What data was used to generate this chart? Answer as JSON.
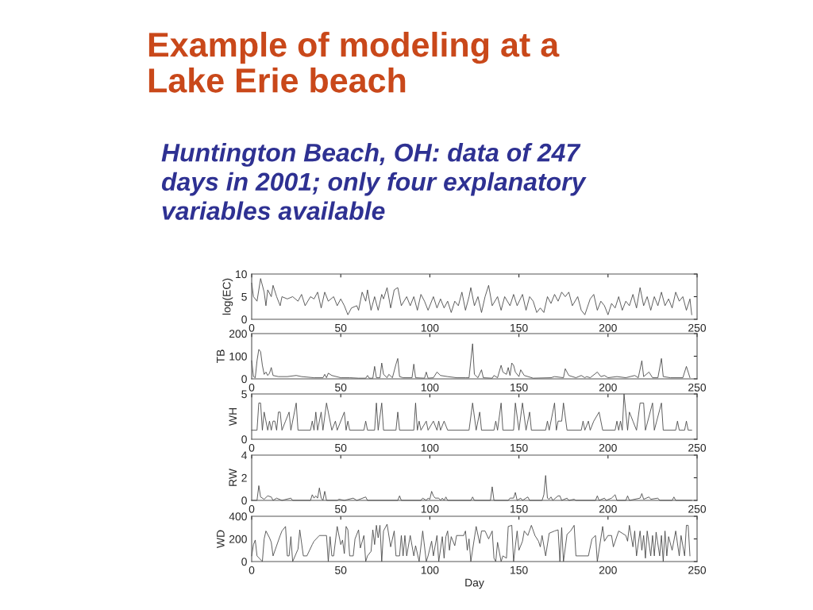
{
  "chart_data": [
    {
      "type": "line",
      "title": "Example of modeling at a\nLake Erie beach",
      "subtitle": "Huntington Beach, OH: data of 247\ndays in 2001; only four explanatory\nvariables available",
      "ylabel": "log(EC)",
      "color": "#404040",
      "grid": false,
      "xlim": [
        0,
        250
      ],
      "xticks": [
        0,
        50,
        100,
        150,
        200,
        250
      ],
      "ylim": [
        0,
        10
      ],
      "yticks": [
        0,
        5,
        10
      ],
      "x": [
        0,
        1,
        3,
        5,
        7,
        8,
        9,
        11,
        12,
        14,
        16,
        17,
        20,
        23,
        26,
        28,
        30,
        33,
        35,
        37,
        39,
        41,
        43,
        46,
        48,
        50,
        52,
        54,
        56,
        59,
        60,
        62,
        64,
        65,
        67,
        69,
        71,
        73,
        74,
        76,
        78,
        80,
        82,
        84,
        87,
        89,
        91,
        93,
        95,
        97,
        99,
        102,
        104,
        106,
        108,
        110,
        112,
        114,
        116,
        118,
        120,
        122,
        123,
        125,
        127,
        129,
        131,
        133,
        135,
        138,
        140,
        142,
        145,
        147,
        149,
        152,
        154,
        156,
        158,
        160,
        162,
        164,
        166,
        168,
        170,
        172,
        174,
        176,
        178,
        180,
        183,
        185,
        187,
        190,
        192,
        194,
        196,
        198,
        200,
        202,
        204,
        206,
        208,
        210,
        212,
        214,
        216,
        218,
        220,
        222,
        224,
        226,
        228,
        230,
        232,
        234,
        236,
        238,
        240,
        242,
        244,
        246,
        247
      ],
      "values": [
        8,
        5,
        4,
        9,
        6,
        3,
        6.5,
        5,
        7.5,
        5,
        3,
        5,
        4.5,
        5,
        4,
        5.5,
        3,
        5,
        4.5,
        6,
        2.5,
        6,
        4,
        5,
        3,
        4.5,
        3,
        1,
        2.5,
        3,
        2,
        6,
        4,
        6.5,
        2,
        5,
        2,
        5.5,
        4.5,
        7,
        2.5,
        6.5,
        7,
        3,
        5,
        3,
        5,
        2,
        5.5,
        4,
        2,
        5,
        2.5,
        4.5,
        2.5,
        4,
        1.5,
        4,
        3,
        6,
        2,
        5,
        7,
        3,
        5,
        1.5,
        5,
        7.5,
        3,
        5,
        2,
        5,
        3,
        5.5,
        3,
        5.5,
        2,
        5,
        4,
        1.5,
        2.5,
        1.5,
        5,
        3.5,
        5.5,
        4,
        6,
        5,
        6,
        3,
        5,
        2,
        1,
        4.5,
        5.5,
        2,
        4,
        3,
        1,
        3.5,
        2.5,
        5,
        2,
        4,
        3,
        5.5,
        2.5,
        7,
        3,
        5,
        2,
        5,
        3,
        6,
        3,
        4.5,
        2.5,
        6,
        4,
        5,
        2,
        4.5,
        1
      ]
    },
    {
      "type": "line",
      "ylabel": "TB",
      "color": "#404040",
      "grid": false,
      "xlim": [
        0,
        250
      ],
      "xticks": [
        0,
        50,
        100,
        150,
        200,
        250
      ],
      "ylim": [
        0,
        200
      ],
      "yticks": [
        0,
        100,
        200
      ],
      "x": [
        0,
        1,
        2,
        3,
        4,
        5,
        6,
        7,
        8,
        9,
        10,
        11,
        12,
        15,
        20,
        25,
        28,
        35,
        40,
        41,
        42,
        43,
        45,
        50,
        55,
        60,
        64,
        65,
        66,
        68,
        69,
        70,
        72,
        73,
        74,
        76,
        77,
        79,
        81,
        82,
        83,
        85,
        90,
        91,
        92,
        97,
        98,
        99,
        102,
        104,
        106,
        110,
        115,
        120,
        122,
        124,
        125,
        127,
        129,
        130,
        135,
        136,
        138,
        140,
        141,
        143,
        144,
        145,
        146,
        147,
        148,
        150,
        151,
        153,
        158,
        168,
        170,
        175,
        176,
        178,
        182,
        185,
        187,
        188,
        190,
        194,
        196,
        198,
        200,
        205,
        210,
        215,
        217,
        219,
        220,
        223,
        225,
        228,
        230,
        231,
        235,
        242,
        244,
        246
      ],
      "values": [
        80,
        10,
        5,
        80,
        130,
        120,
        60,
        20,
        30,
        15,
        25,
        50,
        15,
        10,
        10,
        15,
        10,
        5,
        5,
        20,
        5,
        25,
        15,
        5,
        5,
        3,
        3,
        15,
        3,
        3,
        55,
        5,
        5,
        70,
        20,
        5,
        20,
        5,
        65,
        90,
        10,
        5,
        5,
        65,
        5,
        3,
        30,
        3,
        5,
        30,
        15,
        10,
        5,
        5,
        5,
        155,
        20,
        5,
        40,
        5,
        3,
        15,
        5,
        60,
        30,
        20,
        50,
        15,
        70,
        60,
        30,
        10,
        40,
        15,
        3,
        5,
        10,
        5,
        45,
        15,
        5,
        15,
        5,
        10,
        5,
        30,
        10,
        15,
        5,
        10,
        5,
        15,
        5,
        80,
        10,
        30,
        5,
        5,
        90,
        10,
        5,
        5,
        55,
        5
      ]
    },
    {
      "type": "line",
      "ylabel": "WH",
      "color": "#404040",
      "grid": false,
      "xlim": [
        0,
        250
      ],
      "xticks": [
        0,
        50,
        100,
        150,
        200,
        250
      ],
      "ylim": [
        0,
        5
      ],
      "yticks": [
        0,
        5
      ],
      "x": [
        0,
        3,
        4,
        5,
        6,
        7,
        9,
        10,
        11,
        12,
        13,
        14,
        15,
        16,
        17,
        19,
        21,
        22,
        25,
        26,
        33,
        34,
        35,
        36,
        37,
        39,
        40,
        42,
        45,
        47,
        48,
        52,
        53,
        54,
        55,
        63,
        64,
        65,
        69,
        70,
        71,
        73,
        74,
        81,
        82,
        83,
        91,
        92,
        93,
        94,
        95,
        98,
        99,
        102,
        104,
        105,
        106,
        108,
        110,
        122,
        124,
        126,
        128,
        129,
        136,
        137,
        138,
        140,
        141,
        147,
        148,
        150,
        152,
        154,
        156,
        157,
        165,
        166,
        167,
        170,
        171,
        172,
        174,
        175,
        177,
        185,
        186,
        187,
        189,
        190,
        192,
        195,
        197,
        204,
        205,
        206,
        207,
        208,
        209,
        211,
        212,
        214,
        216,
        218,
        220,
        221,
        225,
        226,
        230,
        231,
        238,
        239,
        240,
        243,
        244,
        245,
        247
      ],
      "values": [
        1,
        1,
        4,
        4,
        1,
        3,
        1,
        2,
        1,
        2,
        2,
        1,
        3,
        3,
        1,
        2,
        3,
        1,
        4,
        1,
        1,
        2,
        1,
        3,
        1,
        3,
        1,
        4,
        1,
        2,
        1,
        3,
        1,
        2,
        1,
        1,
        2,
        1,
        1,
        4,
        1,
        4,
        1,
        1,
        3,
        1,
        1,
        4,
        1,
        2,
        1,
        2,
        1,
        2,
        1,
        2,
        1,
        2,
        1,
        1,
        4,
        1,
        3,
        1,
        1,
        2,
        1,
        4,
        1,
        1,
        4,
        1,
        4,
        1,
        3,
        1,
        1,
        2,
        1,
        4,
        1,
        2,
        2,
        4,
        1,
        1,
        2,
        1,
        2,
        1,
        2,
        3,
        1,
        1,
        2,
        1,
        2,
        1,
        5,
        1,
        3,
        2,
        1,
        4,
        4,
        1,
        4,
        1,
        4,
        1,
        1,
        2,
        1,
        1,
        2,
        1,
        1
      ]
    },
    {
      "type": "line",
      "ylabel": "RW",
      "color": "#404040",
      "grid": false,
      "xlim": [
        0,
        250
      ],
      "xticks": [
        0,
        50,
        100,
        150,
        200,
        250
      ],
      "ylim": [
        0,
        4
      ],
      "yticks": [
        0,
        2,
        4
      ],
      "x": [
        0,
        3,
        4,
        5,
        7,
        9,
        11,
        12,
        14,
        17,
        22,
        23,
        33,
        34,
        35,
        36,
        37,
        38,
        39,
        40,
        41,
        42,
        48,
        49,
        52,
        57,
        59,
        64,
        65,
        82,
        83,
        84,
        95,
        96,
        98,
        99,
        100,
        101,
        102,
        103,
        105,
        106,
        107,
        108,
        109,
        110,
        123,
        124,
        125,
        134,
        135,
        136,
        144,
        145,
        147,
        148,
        149,
        151,
        152,
        155,
        156,
        163,
        164,
        165,
        166,
        167,
        168,
        169,
        172,
        173,
        174,
        177,
        178,
        181,
        182,
        193,
        194,
        195,
        198,
        199,
        202,
        204,
        205,
        210,
        211,
        212,
        218,
        219,
        220,
        223,
        224,
        228,
        229,
        236,
        237,
        238,
        247
      ],
      "values": [
        0,
        0,
        1.3,
        0.3,
        0.1,
        0.4,
        0.3,
        0,
        0.2,
        0,
        0.2,
        0,
        0,
        0.5,
        0.2,
        0.4,
        0.2,
        1.1,
        0.2,
        0,
        0.8,
        0,
        0,
        0.1,
        0,
        0.2,
        0,
        0.3,
        0,
        0,
        0.4,
        0,
        0,
        0.2,
        0,
        0.2,
        0.1,
        0.8,
        0.4,
        0.2,
        0.2,
        0,
        0.2,
        0,
        0.3,
        0,
        0,
        0.3,
        0,
        0,
        1.2,
        0,
        0,
        0.2,
        0.2,
        0.7,
        0,
        0.2,
        0,
        0.3,
        0,
        0,
        0.5,
        2.2,
        0.2,
        0.1,
        0.3,
        0,
        0.4,
        0.4,
        0,
        0.2,
        0,
        0.1,
        0,
        0,
        0.4,
        0,
        0.2,
        0,
        0.2,
        0.5,
        0,
        0,
        0.4,
        0,
        0.2,
        0.6,
        0.1,
        0.3,
        0.1,
        0.2,
        0,
        0,
        0.3,
        0,
        0
      ]
    },
    {
      "type": "line",
      "ylabel": "WD",
      "xlabel": "Day",
      "color": "#404040",
      "grid": false,
      "xlim": [
        0,
        250
      ],
      "xticks": [
        0,
        50,
        100,
        150,
        200,
        250
      ],
      "ylim": [
        0,
        400
      ],
      "yticks": [
        0,
        200,
        400
      ],
      "x": [
        0,
        1,
        2,
        3,
        6,
        7,
        8,
        10,
        11,
        12,
        14,
        16,
        17,
        19,
        20,
        21,
        22,
        23,
        26,
        27,
        29,
        31,
        34,
        35,
        38,
        42,
        43,
        44,
        45,
        46,
        48,
        50,
        51,
        52,
        53,
        54,
        55,
        57,
        58,
        60,
        61,
        63,
        64,
        65,
        67,
        68,
        69,
        70,
        71,
        72,
        73,
        74,
        76,
        78,
        80,
        81,
        83,
        84,
        85,
        86,
        87,
        89,
        91,
        92,
        94,
        96,
        98,
        99,
        101,
        102,
        104,
        105,
        107,
        108,
        109,
        110,
        111,
        112,
        114,
        115,
        119,
        120,
        121,
        122,
        123,
        126,
        128,
        129,
        131,
        133,
        135,
        136,
        137,
        138,
        140,
        141,
        143,
        144,
        146,
        147,
        149,
        150,
        152,
        153,
        155,
        157,
        159,
        161,
        162,
        163,
        165,
        167,
        170,
        172,
        173,
        174,
        175,
        177,
        179,
        181,
        182,
        189,
        191,
        193,
        194,
        197,
        198,
        200,
        202,
        203,
        206,
        210,
        211,
        212,
        214,
        215,
        216,
        218,
        219,
        220,
        221,
        222,
        224,
        225,
        226,
        227,
        229,
        230,
        231,
        232,
        233,
        234,
        236,
        238,
        240,
        241,
        243,
        244,
        245,
        246
      ],
      "values": [
        50,
        150,
        190,
        50,
        0,
        200,
        270,
        210,
        170,
        50,
        140,
        230,
        270,
        310,
        50,
        50,
        220,
        0,
        110,
        280,
        50,
        50,
        150,
        180,
        230,
        230,
        0,
        220,
        50,
        50,
        310,
        150,
        190,
        70,
        310,
        280,
        50,
        50,
        200,
        280,
        120,
        230,
        0,
        50,
        90,
        280,
        150,
        320,
        210,
        320,
        0,
        270,
        330,
        130,
        270,
        50,
        50,
        230,
        50,
        230,
        50,
        230,
        50,
        140,
        0,
        270,
        0,
        50,
        180,
        50,
        230,
        0,
        220,
        30,
        220,
        270,
        100,
        220,
        140,
        230,
        230,
        270,
        100,
        200,
        0,
        310,
        160,
        270,
        270,
        200,
        270,
        30,
        0,
        170,
        0,
        50,
        30,
        310,
        320,
        0,
        270,
        100,
        180,
        270,
        230,
        320,
        230,
        180,
        130,
        230,
        50,
        250,
        270,
        280,
        0,
        300,
        0,
        240,
        270,
        320,
        50,
        50,
        200,
        230,
        0,
        310,
        180,
        230,
        230,
        130,
        270,
        230,
        180,
        320,
        130,
        270,
        50,
        270,
        100,
        230,
        30,
        270,
        50,
        230,
        50,
        260,
        50,
        230,
        0,
        270,
        50,
        220,
        100,
        270,
        50,
        230,
        50,
        320,
        320,
        50
      ]
    }
  ]
}
